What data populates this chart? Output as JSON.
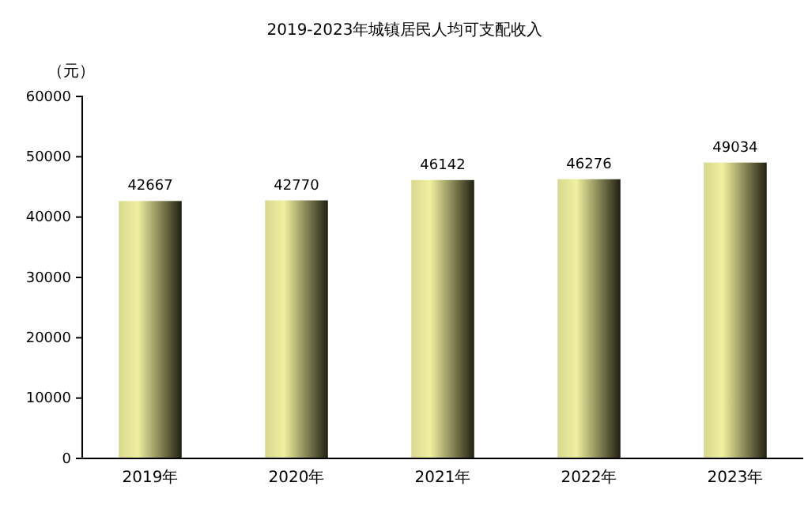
{
  "chart_data": {
    "type": "bar",
    "title": "2019-2023年城镇居民人均可支配收入",
    "ylabel": "（元）",
    "categories": [
      "2019年",
      "2020年",
      "2021年",
      "2022年",
      "2023年"
    ],
    "values": [
      42667,
      42770,
      46142,
      46276,
      49034
    ],
    "color": "#f0f0a0",
    "ylim": [
      0,
      60000
    ],
    "yticks": [
      0,
      10000,
      20000,
      30000,
      40000,
      50000,
      60000
    ],
    "grid": false,
    "data_labels": true
  }
}
